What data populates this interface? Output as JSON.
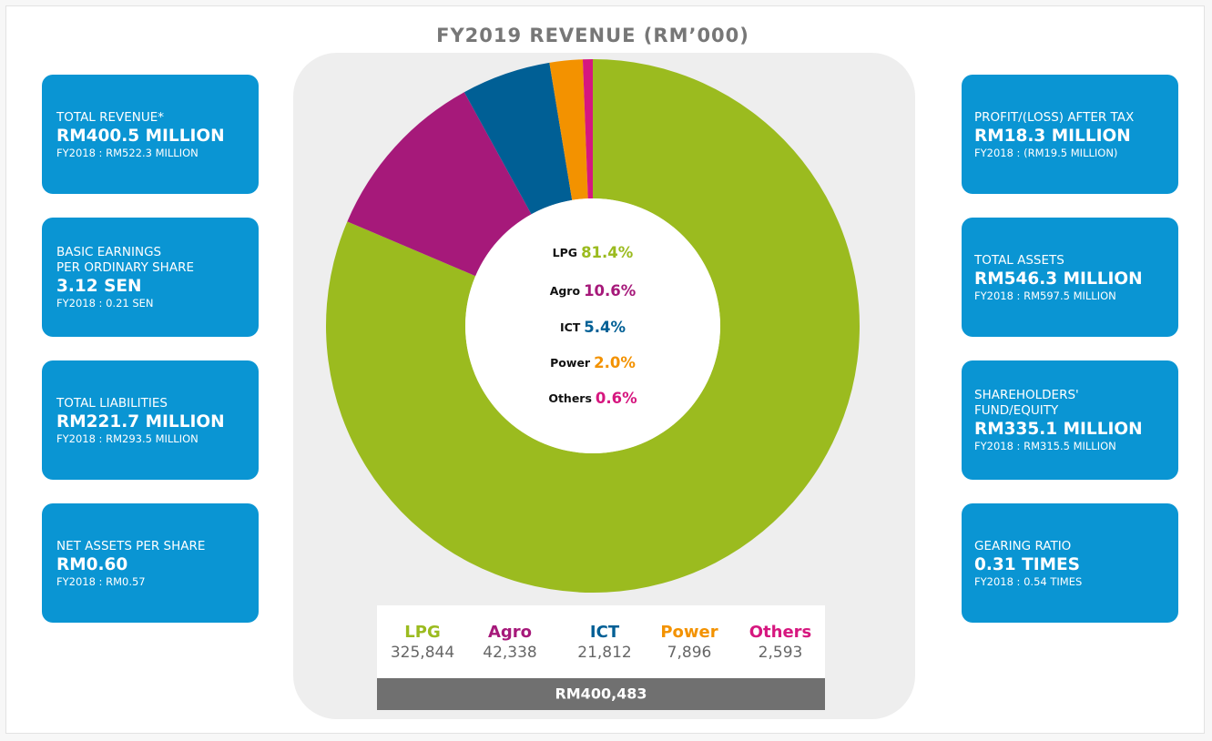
{
  "chart_data": {
    "type": "pie",
    "donut": true,
    "title": "FY2019 REVENUE (RM’000)",
    "categories": [
      "LPG",
      "Agro",
      "ICT",
      "Power",
      "Others"
    ],
    "values": [
      81.4,
      10.6,
      5.4,
      2.0,
      0.6
    ],
    "value_labels": [
      "81.4%",
      "10.6%",
      "5.4%",
      "2.0%",
      "0.6%"
    ],
    "colors": [
      "#9bbb1f",
      "#a6197a",
      "#005f95",
      "#f39200",
      "#d6177f"
    ],
    "amounts": [
      "325,844",
      "42,338",
      "21,812",
      "7,896",
      "2,593"
    ],
    "total": "RM400,483"
  },
  "cards": {
    "left": [
      {
        "label": [
          "TOTAL REVENUE*"
        ],
        "value": "RM400.5 MILLION",
        "previous": "FY2018 : RM522.3 MILLION"
      },
      {
        "label": [
          "BASIC EARNINGS",
          "PER ORDINARY SHARE"
        ],
        "value": "3.12 SEN",
        "previous": "FY2018 : 0.21 SEN"
      },
      {
        "label": [
          "TOTAL LIABILITIES"
        ],
        "value": "RM221.7 MILLION",
        "previous": "FY2018 : RM293.5 MILLION"
      },
      {
        "label": [
          "NET ASSETS PER SHARE"
        ],
        "value": "RM0.60",
        "previous": "FY2018 : RM0.57"
      }
    ],
    "right": [
      {
        "label": [
          "PROFIT/(LOSS) AFTER TAX"
        ],
        "value": "RM18.3 MILLION",
        "previous": "FY2018 : (RM19.5 MILLION)"
      },
      {
        "label": [
          "TOTAL ASSETS"
        ],
        "value": "RM546.3 MILLION",
        "previous": "FY2018 : RM597.5 MILLION"
      },
      {
        "label": [
          "SHAREHOLDERS'",
          "FUND/EQUITY"
        ],
        "value": "RM335.1 MILLION",
        "previous": "FY2018 : RM315.5 MILLION"
      },
      {
        "label": [
          "GEARING RATIO"
        ],
        "value": "0.31 TIMES",
        "previous": "FY2018 : 0.54 TIMES"
      }
    ]
  }
}
